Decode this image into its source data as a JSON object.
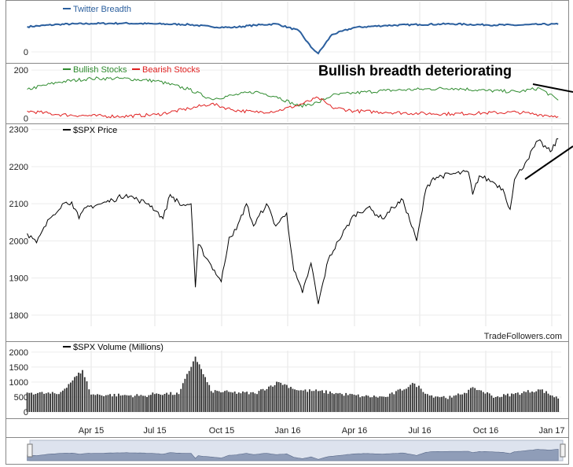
{
  "annotation": "Bullish breadth deteriorating",
  "credit": "TradeFollowers.com",
  "x_tick_labels": [
    "Apr 15",
    "Jul 15",
    "Oct 15",
    "Jan 16",
    "Apr 16",
    "Jul 16",
    "Oct 16",
    "Jan 17"
  ],
  "chart_data": [
    {
      "type": "line",
      "panel": "twitter",
      "x": [
        "2015-01-02",
        "2015-02-15",
        "2015-04-01",
        "2015-05-15",
        "2015-07-01",
        "2015-08-15",
        "2015-09-15",
        "2015-10-15",
        "2015-11-15",
        "2015-12-15",
        "2016-01-15",
        "2016-02-01",
        "2016-02-11",
        "2016-03-01",
        "2016-04-01",
        "2016-05-15",
        "2016-07-01",
        "2016-08-15",
        "2016-10-01",
        "2016-11-15",
        "2016-12-15",
        "2017-01-10"
      ],
      "series": [
        {
          "name": "Twitter Breadth",
          "color": "#2b5f9e",
          "values": [
            160,
            175,
            180,
            182,
            178,
            174,
            160,
            155,
            170,
            178,
            135,
            30,
            -10,
            110,
            155,
            168,
            174,
            178,
            172,
            170,
            175,
            176
          ]
        }
      ],
      "yticks": [
        0
      ],
      "ylim": [
        -60,
        320
      ]
    },
    {
      "type": "line",
      "panel": "breadth",
      "x": [
        "2015-01-02",
        "2015-02-15",
        "2015-04-01",
        "2015-05-15",
        "2015-07-01",
        "2015-08-15",
        "2015-09-15",
        "2015-10-15",
        "2015-11-15",
        "2015-12-15",
        "2016-01-15",
        "2016-02-11",
        "2016-03-01",
        "2016-04-01",
        "2016-05-15",
        "2016-07-01",
        "2016-08-15",
        "2016-10-01",
        "2016-11-15",
        "2016-12-15",
        "2017-01-10"
      ],
      "series": [
        {
          "name": "Bullish Stocks",
          "color": "#2e8b2e",
          "values": [
            120,
            150,
            165,
            165,
            155,
            120,
            80,
            95,
            110,
            90,
            50,
            65,
            95,
            105,
            115,
            120,
            125,
            115,
            110,
            125,
            75
          ]
        },
        {
          "name": "Bearish Stocks",
          "color": "#e02020",
          "values": [
            30,
            15,
            10,
            8,
            15,
            40,
            60,
            35,
            25,
            30,
            55,
            85,
            45,
            30,
            25,
            20,
            18,
            22,
            25,
            15,
            8
          ]
        }
      ],
      "yticks": [
        0,
        200
      ],
      "ylim": [
        -15,
        220
      ]
    },
    {
      "type": "line",
      "panel": "price",
      "x": [
        "2015-01-02",
        "2015-01-15",
        "2015-02-02",
        "2015-02-20",
        "2015-03-05",
        "2015-03-15",
        "2015-03-25",
        "2015-04-15",
        "2015-05-01",
        "2015-05-20",
        "2015-06-05",
        "2015-06-20",
        "2015-07-01",
        "2015-07-10",
        "2015-07-20",
        "2015-08-05",
        "2015-08-18",
        "2015-08-24",
        "2015-08-28",
        "2015-09-10",
        "2015-09-29",
        "2015-10-10",
        "2015-10-20",
        "2015-11-03",
        "2015-11-13",
        "2015-12-01",
        "2015-12-14",
        "2015-12-29",
        "2016-01-08",
        "2016-01-20",
        "2016-02-01",
        "2016-02-11",
        "2016-02-25",
        "2016-03-10",
        "2016-04-01",
        "2016-04-20",
        "2016-05-10",
        "2016-05-25",
        "2016-06-08",
        "2016-06-27",
        "2016-07-10",
        "2016-07-20",
        "2016-08-15",
        "2016-09-07",
        "2016-09-13",
        "2016-09-22",
        "2016-10-10",
        "2016-10-25",
        "2016-11-04",
        "2016-11-10",
        "2016-11-25",
        "2016-12-13",
        "2016-12-30",
        "2017-01-10"
      ],
      "series": [
        {
          "name": "$SPX Price",
          "color": "#000000",
          "values": [
            2020,
            1995,
            2060,
            2100,
            2105,
            2060,
            2090,
            2100,
            2110,
            2125,
            2110,
            2100,
            2080,
            2060,
            2125,
            2095,
            2100,
            1875,
            1990,
            1950,
            1890,
            2010,
            2030,
            2100,
            2040,
            2100,
            2040,
            2075,
            1920,
            1860,
            1940,
            1830,
            1950,
            2000,
            2070,
            2090,
            2060,
            2090,
            2110,
            2000,
            2140,
            2170,
            2180,
            2185,
            2125,
            2175,
            2160,
            2140,
            2085,
            2165,
            2210,
            2270,
            2240,
            2275
          ]
        }
      ],
      "yticks": [
        1800,
        1900,
        2000,
        2100,
        2200,
        2300
      ],
      "ylim": [
        1770,
        2310
      ]
    },
    {
      "type": "bar",
      "panel": "volume",
      "x": [
        "2015-01-02",
        "2015-02-15",
        "2015-03-20",
        "2015-04-01",
        "2015-05-15",
        "2015-06-15",
        "2015-07-01",
        "2015-08-01",
        "2015-08-24",
        "2015-09-15",
        "2015-10-15",
        "2015-11-15",
        "2015-12-18",
        "2016-01-15",
        "2016-02-11",
        "2016-03-15",
        "2016-04-15",
        "2016-05-15",
        "2016-06-24",
        "2016-07-15",
        "2016-08-15",
        "2016-09-16",
        "2016-10-15",
        "2016-11-09",
        "2016-12-16",
        "2017-01-10"
      ],
      "series": [
        {
          "name": "$SPX Volume (Millions)",
          "color": "#333333",
          "values": [
            650,
            600,
            1400,
            580,
            560,
            540,
            620,
            600,
            1850,
            700,
            650,
            620,
            1000,
            720,
            700,
            600,
            520,
            500,
            950,
            550,
            480,
            800,
            500,
            600,
            750,
            450
          ]
        }
      ],
      "yticks": [
        0,
        500,
        1000,
        1500,
        2000
      ],
      "ylim": [
        0,
        2050
      ]
    }
  ]
}
